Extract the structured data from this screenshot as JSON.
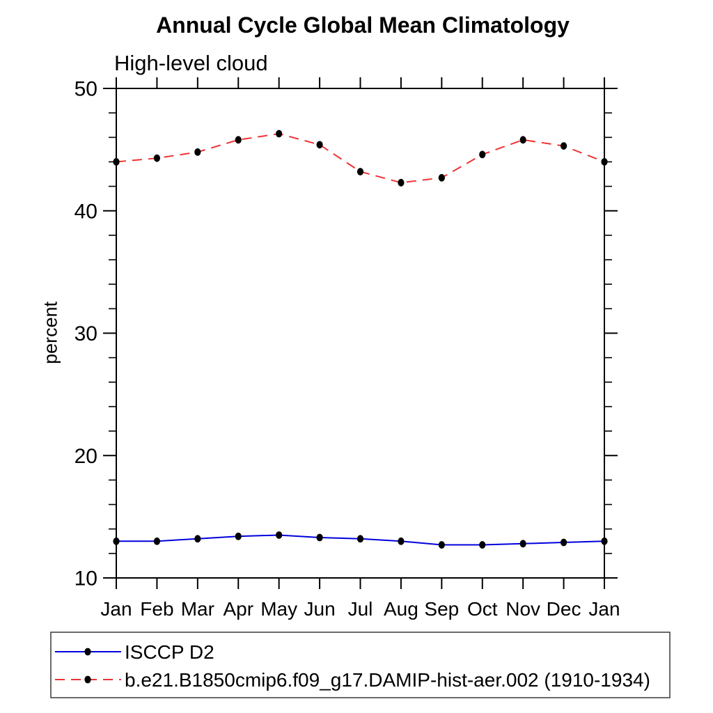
{
  "page": {
    "background": "#ffffff"
  },
  "chart_data": {
    "type": "line",
    "title": "Annual Cycle Global Mean Climatology",
    "subtitle": "High-level cloud",
    "ylabel": "percent",
    "xlabel": "",
    "categories": [
      "Jan",
      "Feb",
      "Mar",
      "Apr",
      "May",
      "Jun",
      "Jul",
      "Aug",
      "Sep",
      "Oct",
      "Nov",
      "Dec",
      "Jan"
    ],
    "ylim": [
      10,
      50
    ],
    "yticks_major": [
      10,
      20,
      30,
      40,
      50
    ],
    "ytick_minor_step": 2,
    "grid": false,
    "axis_color": "#000000",
    "legend_position": "bottom-left-box",
    "series": [
      {
        "name": "ISCCP D2",
        "color": "#0000dd",
        "line_style": "solid",
        "marker": "filled-circle",
        "marker_color": "#000000",
        "values": [
          13.0,
          13.0,
          13.2,
          13.4,
          13.5,
          13.3,
          13.2,
          13.0,
          12.7,
          12.7,
          12.8,
          12.9,
          13.0
        ]
      },
      {
        "name": "b.e21.B1850cmip6.f09_g17.DAMIP-hist-aer.002 (1910-1934)",
        "color": "#ee3333",
        "line_style": "dashed",
        "marker": "filled-circle",
        "marker_color": "#000000",
        "values": [
          44.0,
          44.3,
          44.8,
          45.8,
          46.3,
          45.4,
          43.2,
          42.3,
          42.7,
          44.6,
          45.8,
          45.3,
          44.0
        ]
      }
    ]
  }
}
